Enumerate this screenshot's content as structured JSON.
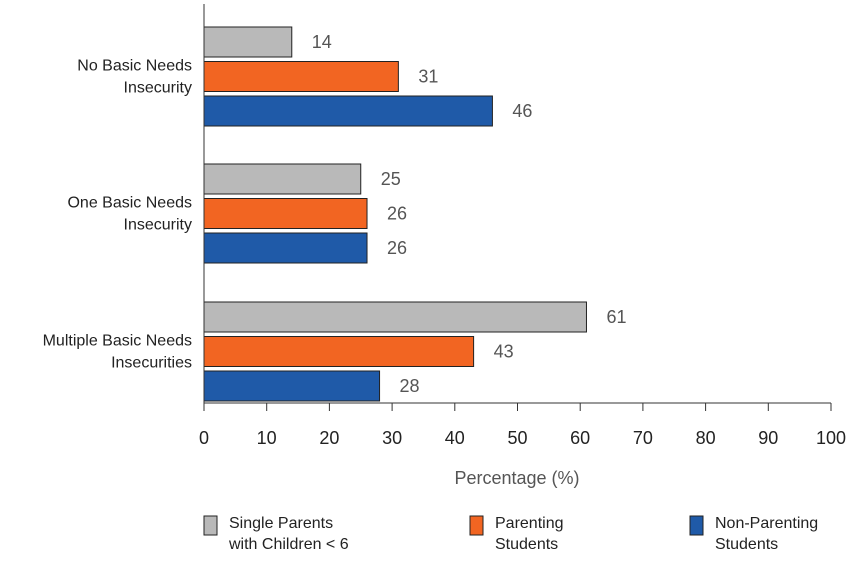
{
  "chart_data": {
    "type": "bar",
    "orientation": "horizontal",
    "categories": [
      [
        "No Basic Needs",
        "Insecurity"
      ],
      [
        "One Basic Needs",
        "Insecurity"
      ],
      [
        "Multiple Basic Needs",
        "Insecurities"
      ]
    ],
    "series": [
      {
        "name": [
          "Single Parents",
          "with Children < 6"
        ],
        "color": "#b9b9b9",
        "values": [
          14,
          25,
          61
        ]
      },
      {
        "name": [
          "Parenting",
          "Students"
        ],
        "color": "#f26522",
        "values": [
          31,
          26,
          43
        ]
      },
      {
        "name": [
          "Non-Parenting",
          "Students"
        ],
        "color": "#1f5aa8",
        "values": [
          46,
          26,
          28
        ]
      }
    ],
    "xlabel": "Percentage (%)",
    "xlim": [
      0,
      100
    ],
    "xticks": [
      0,
      10,
      20,
      30,
      40,
      50,
      60,
      70,
      80,
      90,
      100
    ],
    "grid": false,
    "legend_position": "bottom"
  }
}
